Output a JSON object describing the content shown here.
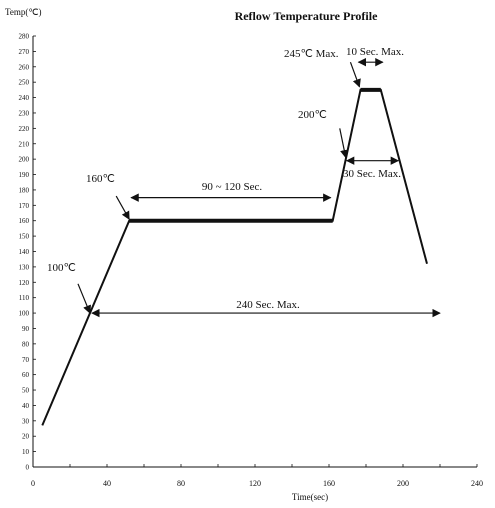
{
  "chart_data": {
    "type": "line",
    "title": "Reflow Temperature Profile",
    "xlabel": "Time(sec)",
    "ylabel": "Temp(℃)",
    "xlim": [
      0,
      240
    ],
    "ylim": [
      0,
      280
    ],
    "xticks": [
      0,
      40,
      80,
      120,
      160,
      200,
      240
    ],
    "yticks": [
      0,
      10,
      20,
      30,
      40,
      50,
      60,
      70,
      80,
      90,
      100,
      110,
      120,
      130,
      140,
      150,
      160,
      170,
      180,
      190,
      200,
      210,
      220,
      230,
      240,
      250,
      260,
      270,
      280
    ],
    "grid": false,
    "series": [
      {
        "x": [
          5,
          52,
          162,
          177,
          188,
          213
        ],
        "y": [
          27,
          160,
          160,
          245,
          245,
          132
        ]
      }
    ],
    "annotations": {
      "t100": "100℃",
      "t160": "160℃",
      "t200": "200℃",
      "t245": "245℃ Max.",
      "soak": "90 ~ 120 Sec.",
      "peak": "10 Sec. Max.",
      "above200": "30 Sec. Max.",
      "total": "240 Sec. Max."
    }
  }
}
